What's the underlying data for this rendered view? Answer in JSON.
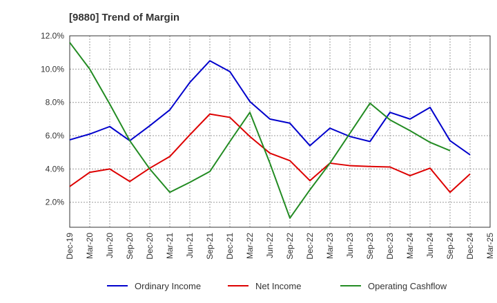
{
  "chart_data": {
    "type": "line",
    "title": "[9880]  Trend of Margin",
    "xlabel": "",
    "ylabel": "",
    "categories": [
      "Dec-19",
      "Mar-20",
      "Jun-20",
      "Sep-20",
      "Dec-20",
      "Mar-21",
      "Jun-21",
      "Sep-21",
      "Dec-21",
      "Mar-22",
      "Jun-22",
      "Sep-22",
      "Dec-22",
      "Mar-23",
      "Jun-23",
      "Sep-23",
      "Dec-23",
      "Mar-24",
      "Jun-24",
      "Sep-24",
      "Dec-24",
      "Mar-25"
    ],
    "ylim": [
      0.5,
      12.0
    ],
    "yticks": [
      "2.0%",
      "4.0%",
      "6.0%",
      "8.0%",
      "10.0%",
      "12.0%"
    ],
    "ytick_values": [
      2,
      4,
      6,
      8,
      10,
      12
    ],
    "grid": true,
    "legend_position": "bottom",
    "series": [
      {
        "name": "Ordinary Income",
        "color": "#0000cc",
        "values": [
          5.75,
          6.1,
          6.55,
          5.7,
          6.6,
          7.55,
          9.2,
          10.5,
          9.85,
          8.05,
          7.0,
          6.75,
          5.4,
          6.45,
          5.95,
          5.65,
          7.4,
          7.0,
          7.7,
          5.7,
          4.85,
          null
        ]
      },
      {
        "name": "Net Income",
        "color": "#dd0000",
        "values": [
          2.95,
          3.8,
          4.0,
          3.25,
          4.05,
          4.75,
          6.05,
          7.3,
          7.1,
          5.95,
          4.95,
          4.5,
          3.3,
          4.35,
          4.2,
          4.15,
          4.12,
          3.6,
          4.05,
          2.6,
          3.7,
          null
        ]
      },
      {
        "name": "Operating Cashflow",
        "color": "#228b22",
        "values": [
          11.6,
          10.0,
          7.9,
          5.7,
          4.0,
          2.6,
          3.2,
          3.85,
          5.65,
          7.4,
          4.35,
          1.05,
          2.75,
          4.35,
          6.15,
          7.95,
          6.95,
          6.3,
          5.6,
          5.1,
          null,
          null
        ]
      }
    ]
  }
}
